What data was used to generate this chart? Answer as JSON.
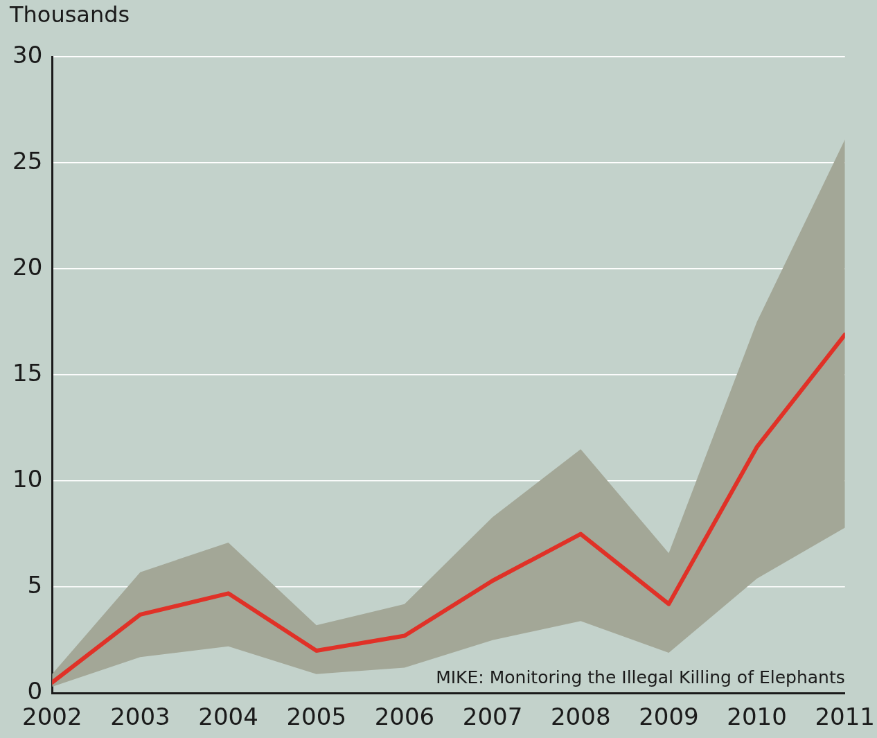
{
  "chart_data": {
    "type": "line",
    "ylabel": "Thousands",
    "x": [
      2002,
      2003,
      2004,
      2005,
      2006,
      2007,
      2008,
      2009,
      2010,
      2011
    ],
    "series": [
      {
        "color": "#e03127",
        "values": [
          0.5,
          3.7,
          4.7,
          2.0,
          2.7,
          5.3,
          7.5,
          4.2,
          11.6,
          16.9
        ],
        "lower": [
          0.3,
          1.7,
          2.2,
          0.9,
          1.2,
          2.5,
          3.4,
          1.9,
          5.4,
          7.8
        ],
        "upper": [
          0.9,
          5.7,
          7.1,
          3.2,
          4.2,
          8.3,
          11.5,
          6.6,
          17.5,
          26.1
        ]
      }
    ],
    "xlim": [
      2002,
      2011
    ],
    "xticks": [
      2002,
      2003,
      2004,
      2005,
      2006,
      2007,
      2008,
      2009,
      2010,
      2011
    ],
    "ylim": [
      0,
      30
    ],
    "yticks": [
      0,
      5,
      10,
      15,
      20,
      25,
      30
    ],
    "grid": "y",
    "marker": "none",
    "line_style": "solid",
    "annotations": [
      "MIKE: Monitoring the Illegal Killing of Elephants"
    ]
  }
}
